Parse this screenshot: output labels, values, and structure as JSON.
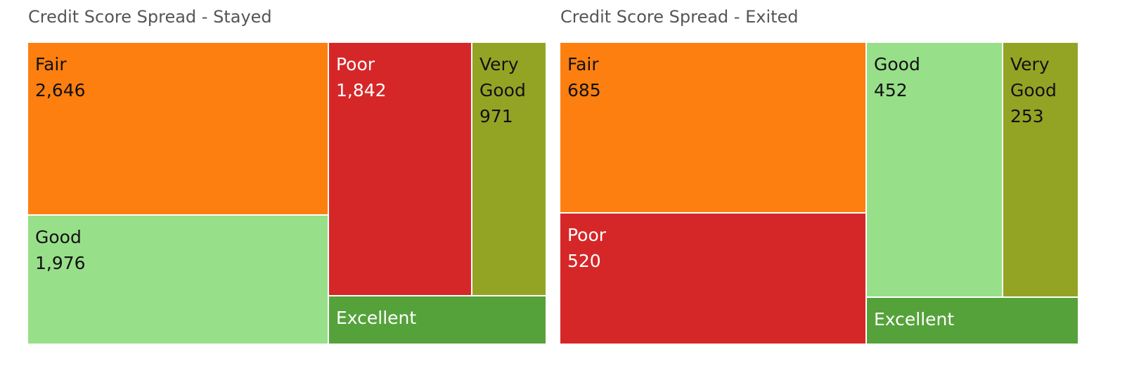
{
  "colors": {
    "Fair": "#fd7f10",
    "Good": "#98df8a",
    "Poor": "#d62728",
    "Very Good": "#93a425",
    "Excellent": "#55a23a",
    "title": "#555555"
  },
  "chart_data": [
    {
      "type": "treemap",
      "title": "Credit Score Spread - Stayed",
      "items": [
        {
          "label": "Fair",
          "value": 2646,
          "display": "2,646",
          "label_lines": [
            "Fair"
          ]
        },
        {
          "label": "Good",
          "value": 1976,
          "display": "1,976",
          "label_lines": [
            "Good"
          ]
        },
        {
          "label": "Poor",
          "value": 1842,
          "display": "1,842",
          "label_lines": [
            "Poor"
          ]
        },
        {
          "label": "Very Good",
          "value": 971,
          "display": "971",
          "label_lines": [
            "Very",
            "Good"
          ]
        },
        {
          "label": "Excellent",
          "value": null,
          "display": "",
          "label_lines": [
            "Excellent"
          ]
        }
      ]
    },
    {
      "type": "treemap",
      "title": "Credit Score Spread - Exited",
      "items": [
        {
          "label": "Fair",
          "value": 685,
          "display": "685",
          "label_lines": [
            "Fair"
          ]
        },
        {
          "label": "Poor",
          "value": 520,
          "display": "520",
          "label_lines": [
            "Poor"
          ]
        },
        {
          "label": "Good",
          "value": 452,
          "display": "452",
          "label_lines": [
            "Good"
          ]
        },
        {
          "label": "Very Good",
          "value": 253,
          "display": "253",
          "label_lines": [
            "Very",
            "Good"
          ]
        },
        {
          "label": "Excellent",
          "value": null,
          "display": "",
          "label_lines": [
            "Excellent"
          ]
        }
      ]
    }
  ]
}
